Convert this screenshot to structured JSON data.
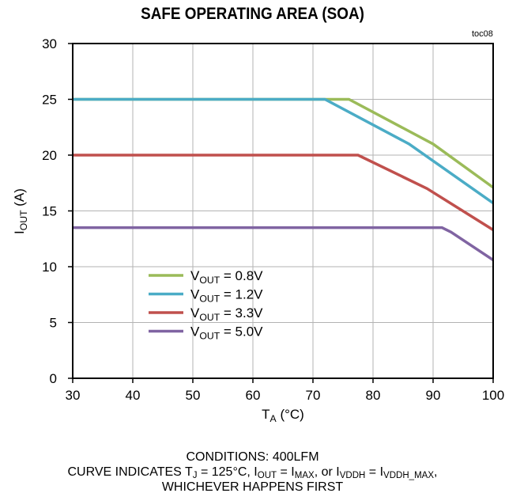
{
  "chart_data": {
    "type": "line",
    "title": "SAFE OPERATING AREA (SOA)",
    "tag": "toc08",
    "xlabel": {
      "main": "T",
      "sub": "A",
      "suffix": " (°C)"
    },
    "ylabel": {
      "main": "I",
      "sub": "OUT",
      "suffix": " (A)"
    },
    "xlim": [
      30,
      100
    ],
    "ylim": [
      0,
      30
    ],
    "xticks": [
      30,
      40,
      50,
      60,
      70,
      80,
      90,
      100
    ],
    "yticks": [
      0,
      5,
      10,
      15,
      20,
      25,
      30
    ],
    "grid": true,
    "legend_position": "bottom-left",
    "series": [
      {
        "name": "0.8V",
        "color": "#9bbb59",
        "x": [
          30,
          76,
          90,
          100
        ],
        "y": [
          25,
          25,
          21,
          17.1
        ]
      },
      {
        "name": "1.2V",
        "color": "#4bacc6",
        "x": [
          30,
          72,
          86,
          100
        ],
        "y": [
          25,
          25,
          21,
          15.7
        ]
      },
      {
        "name": "3.3V",
        "color": "#c0504d",
        "x": [
          30,
          77.5,
          89,
          100
        ],
        "y": [
          20,
          20,
          17,
          13.3
        ]
      },
      {
        "name": "5.0V",
        "color": "#8064a2",
        "x": [
          30,
          91.5,
          93,
          100
        ],
        "y": [
          13.5,
          13.5,
          13.1,
          10.6
        ]
      }
    ],
    "legend_prefix": {
      "main": "V",
      "sub": "OUT",
      "suffix": " = "
    },
    "conditions": "CONDITIONS:  400LFM",
    "note_line1": {
      "p1": "CURVE INDICATES T",
      "s1": "J",
      "p2": " = 125°C, I",
      "s2": "OUT",
      "p3": " = I",
      "s3": "MAX",
      "p4": ", or I",
      "s4": "VDDH",
      "p5": " = I",
      "s5": "VDDH_MAX",
      "p6": ","
    },
    "note_line2": "WHICHEVER HAPPENS FIRST"
  }
}
